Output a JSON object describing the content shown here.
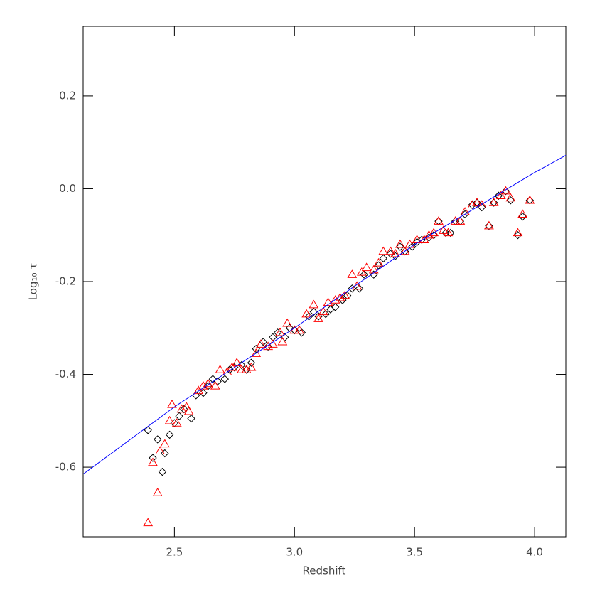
{
  "chart_data": {
    "type": "scatter",
    "xlabel": "Redshift",
    "ylabel": "Log₁₀ τ",
    "xlim": [
      2.12,
      4.13
    ],
    "ylim": [
      -0.75,
      0.35
    ],
    "xticks": [
      2.5,
      {
        "value": 3,
        "label": "3.0"
      },
      3.5,
      {
        "value": 4,
        "label": "4.0"
      }
    ],
    "yticks": [
      -0.6,
      -0.4,
      -0.2,
      {
        "value": 0,
        "label": "0.0"
      },
      0.2
    ],
    "series": [
      {
        "marker": "diamond",
        "color": "#000000",
        "x": [
          2.39,
          2.41,
          2.43,
          2.45,
          2.46,
          2.48,
          2.5,
          2.52,
          2.54,
          2.57,
          2.59,
          2.62,
          2.64,
          2.66,
          2.68,
          2.71,
          2.73,
          2.75,
          2.78,
          2.8,
          2.82,
          2.84,
          2.87,
          2.89,
          2.91,
          2.93,
          2.96,
          2.98,
          3.0,
          3.03,
          3.06,
          3.08,
          3.1,
          3.13,
          3.15,
          3.17,
          3.2,
          3.22,
          3.24,
          3.27,
          3.29,
          3.33,
          3.35,
          3.37,
          3.4,
          3.42,
          3.44,
          3.46,
          3.49,
          3.51,
          3.53,
          3.56,
          3.58,
          3.6,
          3.63,
          3.65,
          3.67,
          3.69,
          3.71,
          3.74,
          3.76,
          3.78,
          3.81,
          3.83,
          3.85,
          3.88,
          3.9,
          3.93,
          3.95,
          3.98
        ],
        "values": [
          -0.52,
          -0.58,
          -0.54,
          -0.61,
          -0.57,
          -0.53,
          -0.505,
          -0.49,
          -0.475,
          -0.495,
          -0.445,
          -0.44,
          -0.425,
          -0.41,
          -0.415,
          -0.41,
          -0.39,
          -0.385,
          -0.38,
          -0.39,
          -0.375,
          -0.345,
          -0.33,
          -0.34,
          -0.32,
          -0.31,
          -0.32,
          -0.3,
          -0.305,
          -0.31,
          -0.275,
          -0.265,
          -0.275,
          -0.27,
          -0.26,
          -0.255,
          -0.24,
          -0.23,
          -0.215,
          -0.215,
          -0.185,
          -0.185,
          -0.165,
          -0.15,
          -0.14,
          -0.145,
          -0.125,
          -0.135,
          -0.125,
          -0.115,
          -0.11,
          -0.105,
          -0.1,
          -0.07,
          -0.095,
          -0.095,
          -0.07,
          -0.07,
          -0.055,
          -0.035,
          -0.03,
          -0.04,
          -0.08,
          -0.03,
          -0.015,
          -0.005,
          -0.025,
          -0.1,
          -0.06,
          -0.025
        ]
      },
      {
        "marker": "triangle",
        "color": "#ff0000",
        "x": [
          2.39,
          2.41,
          2.43,
          2.44,
          2.46,
          2.48,
          2.49,
          2.51,
          2.53,
          2.55,
          2.56,
          2.6,
          2.62,
          2.64,
          2.67,
          2.69,
          2.72,
          2.74,
          2.76,
          2.78,
          2.8,
          2.82,
          2.84,
          2.86,
          2.89,
          2.91,
          2.94,
          2.95,
          2.97,
          3.0,
          3.02,
          3.05,
          3.08,
          3.1,
          3.12,
          3.14,
          3.17,
          3.19,
          3.21,
          3.24,
          3.26,
          3.28,
          3.3,
          3.33,
          3.35,
          3.37,
          3.4,
          3.42,
          3.44,
          3.46,
          3.48,
          3.51,
          3.54,
          3.56,
          3.58,
          3.6,
          3.62,
          3.64,
          3.67,
          3.69,
          3.71,
          3.74,
          3.76,
          3.78,
          3.81,
          3.83,
          3.86,
          3.88,
          3.9,
          3.93,
          3.95,
          3.98
        ],
        "values": [
          -0.72,
          -0.59,
          -0.655,
          -0.565,
          -0.55,
          -0.5,
          -0.465,
          -0.505,
          -0.475,
          -0.47,
          -0.48,
          -0.435,
          -0.425,
          -0.42,
          -0.425,
          -0.39,
          -0.395,
          -0.385,
          -0.375,
          -0.39,
          -0.39,
          -0.385,
          -0.355,
          -0.335,
          -0.34,
          -0.335,
          -0.31,
          -0.33,
          -0.29,
          -0.305,
          -0.305,
          -0.27,
          -0.25,
          -0.28,
          -0.265,
          -0.245,
          -0.24,
          -0.235,
          -0.23,
          -0.185,
          -0.21,
          -0.18,
          -0.17,
          -0.175,
          -0.16,
          -0.135,
          -0.135,
          -0.14,
          -0.12,
          -0.135,
          -0.12,
          -0.11,
          -0.11,
          -0.1,
          -0.095,
          -0.07,
          -0.09,
          -0.095,
          -0.07,
          -0.07,
          -0.05,
          -0.035,
          -0.03,
          -0.035,
          -0.08,
          -0.03,
          -0.015,
          -0.005,
          -0.02,
          -0.095,
          -0.055,
          -0.025
        ]
      },
      {
        "marker": "line",
        "color": "#0000ff",
        "x": [
          2.12,
          2.5,
          3.0,
          3.5,
          4.0,
          4.13
        ],
        "values": [
          -0.615,
          -0.47,
          -0.3,
          -0.12,
          0.035,
          0.072
        ]
      }
    ]
  }
}
